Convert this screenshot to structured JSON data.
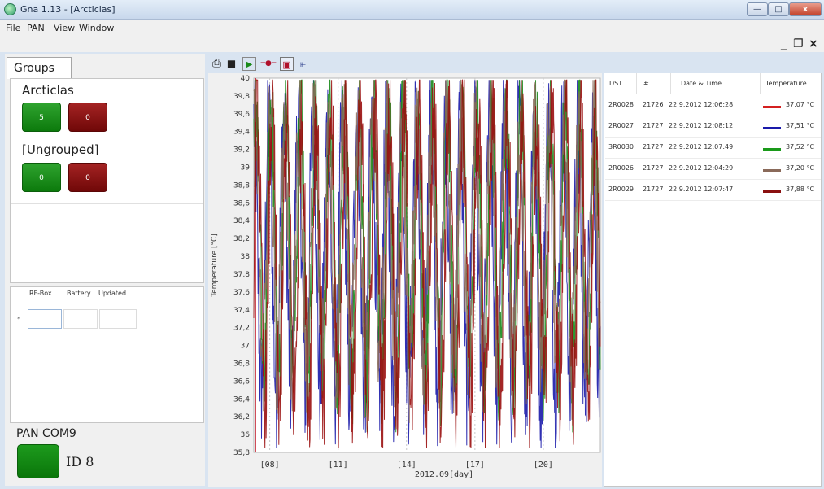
{
  "window": {
    "title": "Gna 1.13 - [Arcticlas]",
    "min": "—",
    "max": "□",
    "close": "x"
  },
  "menu": {
    "file": "File",
    "pan": "PAN",
    "view": "View",
    "window": "Window",
    "mdi_min": "_",
    "mdi_restore": "❐",
    "mdi_close": "×"
  },
  "left": {
    "tab": "Groups",
    "groups": [
      {
        "name": "Arcticlas",
        "green": "5",
        "red": "0"
      },
      {
        "name": "[Ungrouped]",
        "green": "0",
        "red": "0"
      }
    ],
    "grid_columns": [
      "RF-Box",
      "Battery",
      "Updated"
    ],
    "grid_row_marker": "*",
    "pan_title": "PAN COM9",
    "pan_id": "ID 8"
  },
  "toolbar": {
    "print": "⎙",
    "save": "■",
    "play": "▶",
    "marker": "─●─",
    "zoom": "▣",
    "chart": "⫦"
  },
  "chart_data": {
    "type": "line",
    "xlabel": "2012.09[day]",
    "ylabel": "Temperature [°C]",
    "ylim": [
      35.8,
      40.0
    ],
    "xlim": [
      7.3,
      22.5
    ],
    "yticks": [
      "40",
      "39,8",
      "39,6",
      "39,4",
      "39,2",
      "39",
      "38,8",
      "38,6",
      "38,4",
      "38,2",
      "38",
      "37,8",
      "37,6",
      "37,4",
      "37,2",
      "37",
      "36,8",
      "36,6",
      "36,4",
      "36,2",
      "36",
      "35,8"
    ],
    "xticks": [
      {
        "value": 8,
        "label": "[08]"
      },
      {
        "value": 11,
        "label": "[11]"
      },
      {
        "value": 14,
        "label": "[14]"
      },
      {
        "value": 17,
        "label": "[17]"
      },
      {
        "value": 20,
        "label": "[20]"
      }
    ],
    "grid": true,
    "series": [
      {
        "color": "#1a1aaa",
        "cycle_min": 36.5,
        "cycle_max": 39.5,
        "phase": 0.15
      },
      {
        "color": "#1a8a1a",
        "cycle_min": 36.7,
        "cycle_max": 39.7,
        "phase": 0.05
      },
      {
        "color": "#8a6a5a",
        "cycle_min": 36.8,
        "cycle_max": 39.5,
        "phase": 0.1
      },
      {
        "color": "#9a1010",
        "cycle_min": 36.4,
        "cycle_max": 39.6,
        "phase": 0.0
      }
    ]
  },
  "table": {
    "columns": [
      "DST",
      "#",
      "Date & Time",
      "Temperature"
    ],
    "rows": [
      {
        "dst": "2R0028",
        "num": "21726",
        "datetime": "22.9.2012 12:06:28",
        "temp": "37,07 °C",
        "color": "#d42020"
      },
      {
        "dst": "2R0027",
        "num": "21727",
        "datetime": "22.9.2012 12:08:12",
        "temp": "37,51 °C",
        "color": "#1a1aaa"
      },
      {
        "dst": "3R0030",
        "num": "21727",
        "datetime": "22.9.2012 12:07:49",
        "temp": "37,52 °C",
        "color": "#1a9a1a"
      },
      {
        "dst": "2R0026",
        "num": "21727",
        "datetime": "22.9.2012 12:04:29",
        "temp": "37,20 °C",
        "color": "#8a6a5a"
      },
      {
        "dst": "2R0029",
        "num": "21727",
        "datetime": "22.9.2012 12:07:47",
        "temp": "37,88 °C",
        "color": "#8a1010"
      }
    ]
  }
}
